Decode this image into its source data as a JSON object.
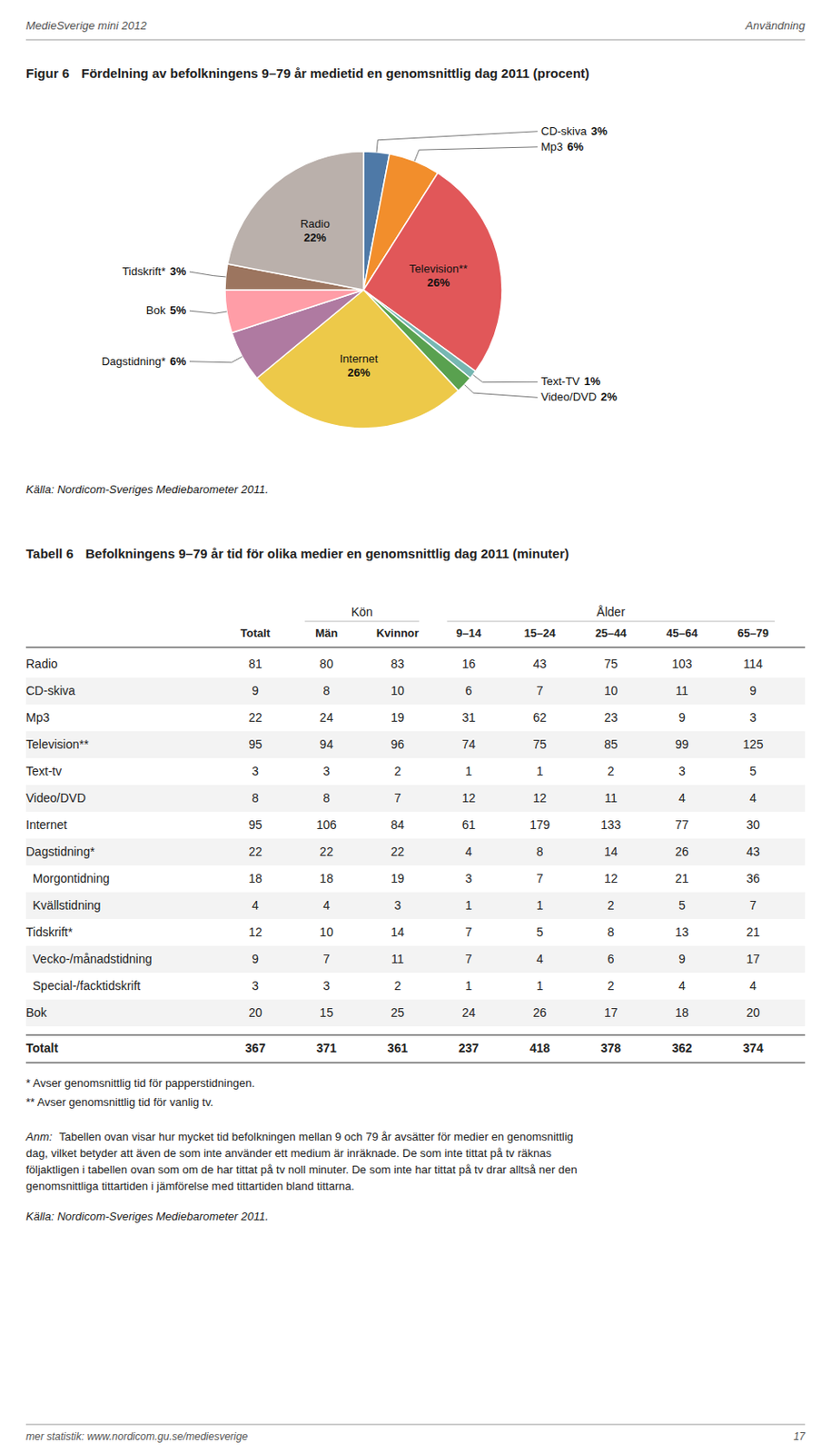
{
  "header": {
    "left": "MedieSverige mini 2012",
    "right": "Användning"
  },
  "footer": {
    "left": "mer statistik: www.nordicom.gu.se/mediesverige",
    "right": "17"
  },
  "chart_data": [
    {
      "type": "pie",
      "title": "Figur 6",
      "subtitle": "Fördelning av befolkningens 9–79 år medietid en genomsnittlig dag 2011 (procent)",
      "categories": [
        "CD-skiva",
        "Mp3",
        "Television**",
        "Text-TV",
        "Video/DVD",
        "Internet",
        "Dagstidning*",
        "Bok",
        "Tidskrift*",
        "Radio"
      ],
      "values": [
        3,
        6,
        26,
        1,
        2,
        26,
        6,
        5,
        3,
        22
      ],
      "value_labels": [
        "3%",
        "6%",
        "26%",
        "1%",
        "2%",
        "26%",
        "6%",
        "5%",
        "3%",
        "22%"
      ],
      "data_labels": true,
      "source": "Källa: Nordicom-Sveriges Mediebarometer 2011."
    },
    {
      "type": "table",
      "title": "Tabell 6",
      "subtitle": "Befolkningens 9–79 år tid för olika medier en genomsnittlig dag 2011 (minuter)",
      "column_groups": [
        {
          "label": "Kön",
          "first": "Män",
          "last": "Kvinnor"
        },
        {
          "label": "Ålder",
          "first": "9–14",
          "last": "65–79"
        }
      ],
      "columns": [
        "Totalt",
        "Män",
        "Kvinnor",
        "9–14",
        "15–24",
        "25–44",
        "45–64",
        "65–79"
      ],
      "rows": [
        {
          "label": "Radio",
          "values": [
            81,
            80,
            83,
            16,
            43,
            75,
            103,
            114
          ]
        },
        {
          "label": "CD-skiva",
          "values": [
            9,
            8,
            10,
            6,
            7,
            10,
            11,
            9
          ]
        },
        {
          "label": "Mp3",
          "values": [
            22,
            24,
            19,
            31,
            62,
            23,
            9,
            3
          ]
        },
        {
          "label": "Television**",
          "values": [
            95,
            94,
            96,
            74,
            75,
            85,
            99,
            125
          ]
        },
        {
          "label": "Text-tv",
          "values": [
            3,
            3,
            2,
            1,
            1,
            2,
            3,
            5
          ]
        },
        {
          "label": "Video/DVD",
          "values": [
            8,
            8,
            7,
            12,
            12,
            11,
            4,
            4
          ]
        },
        {
          "label": "Internet",
          "values": [
            95,
            106,
            84,
            61,
            179,
            133,
            77,
            30
          ]
        },
        {
          "label": "Dagstidning*",
          "values": [
            22,
            22,
            22,
            4,
            8,
            14,
            26,
            43
          ]
        },
        {
          "label": "  Morgontidning",
          "values": [
            18,
            18,
            19,
            3,
            7,
            12,
            21,
            36
          ]
        },
        {
          "label": "  Kvällstidning",
          "values": [
            4,
            4,
            3,
            1,
            1,
            2,
            5,
            7
          ]
        },
        {
          "label": "Tidskrift*",
          "values": [
            12,
            10,
            14,
            7,
            5,
            8,
            13,
            21
          ]
        },
        {
          "label": "  Vecko-/månadstidning",
          "values": [
            9,
            7,
            11,
            7,
            4,
            6,
            9,
            17
          ]
        },
        {
          "label": "  Special-/facktidskrift",
          "values": [
            3,
            3,
            2,
            1,
            1,
            2,
            4,
            4
          ]
        },
        {
          "label": "Bok",
          "values": [
            20,
            15,
            25,
            24,
            26,
            17,
            18,
            20
          ]
        }
      ],
      "total_row": {
        "label": "Totalt",
        "values": [
          367,
          371,
          361,
          237,
          418,
          378,
          362,
          374
        ]
      },
      "notes": [
        "* Avser genomsnittlig tid för papperstidningen.",
        "** Avser genomsnittlig tid för vanlig tv."
      ],
      "remark_label": "Anm:",
      "remark": [
        "Tabellen ovan visar hur mycket tid befolkningen mellan 9 och 79 år avsätter för medier en genomsnittlig",
        "dag, vilket betyder att även de som inte använder ett medium är inräknade. De som inte tittat på tv räknas",
        "följaktligen i tabellen ovan som om de har tittat på tv noll minuter. De som inte har tittat på tv drar alltså ner den",
        "genomsnittliga tittartiden i jämförelse med tittartiden bland tittarna."
      ],
      "source": "Källa: Nordicom-Sveriges Mediebarometer 2011."
    }
  ]
}
